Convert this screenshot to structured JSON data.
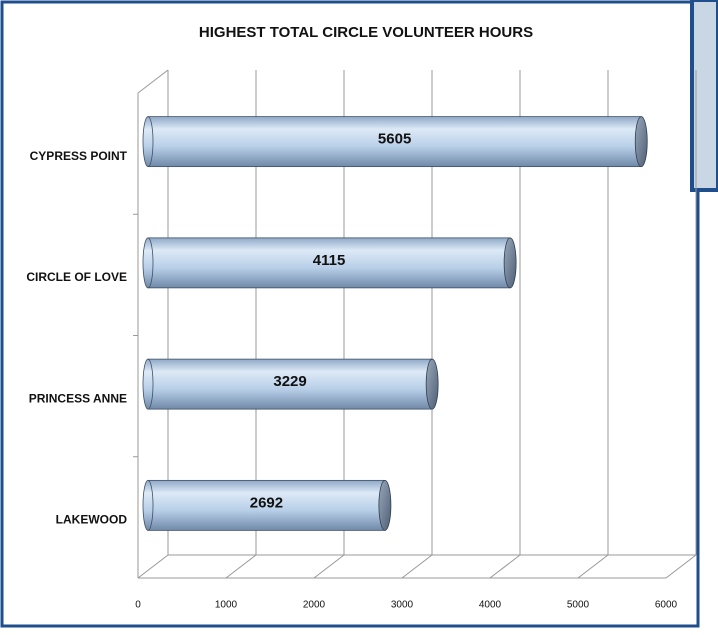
{
  "chart_data": {
    "type": "bar",
    "orientation": "horizontal",
    "title": "HIGHEST TOTAL CIRCLE VOLUNTEER HOURS",
    "categories": [
      "CYPRESS POINT",
      "CIRCLE OF LOVE",
      "PRINCESS ANNE",
      "LAKEWOOD"
    ],
    "values": [
      5605,
      4115,
      3229,
      2692
    ],
    "color": "#b8cfe8",
    "xlim": [
      0,
      6000
    ],
    "xticks": [
      0,
      1000,
      2000,
      3000,
      4000,
      5000,
      6000
    ],
    "grid": true
  }
}
